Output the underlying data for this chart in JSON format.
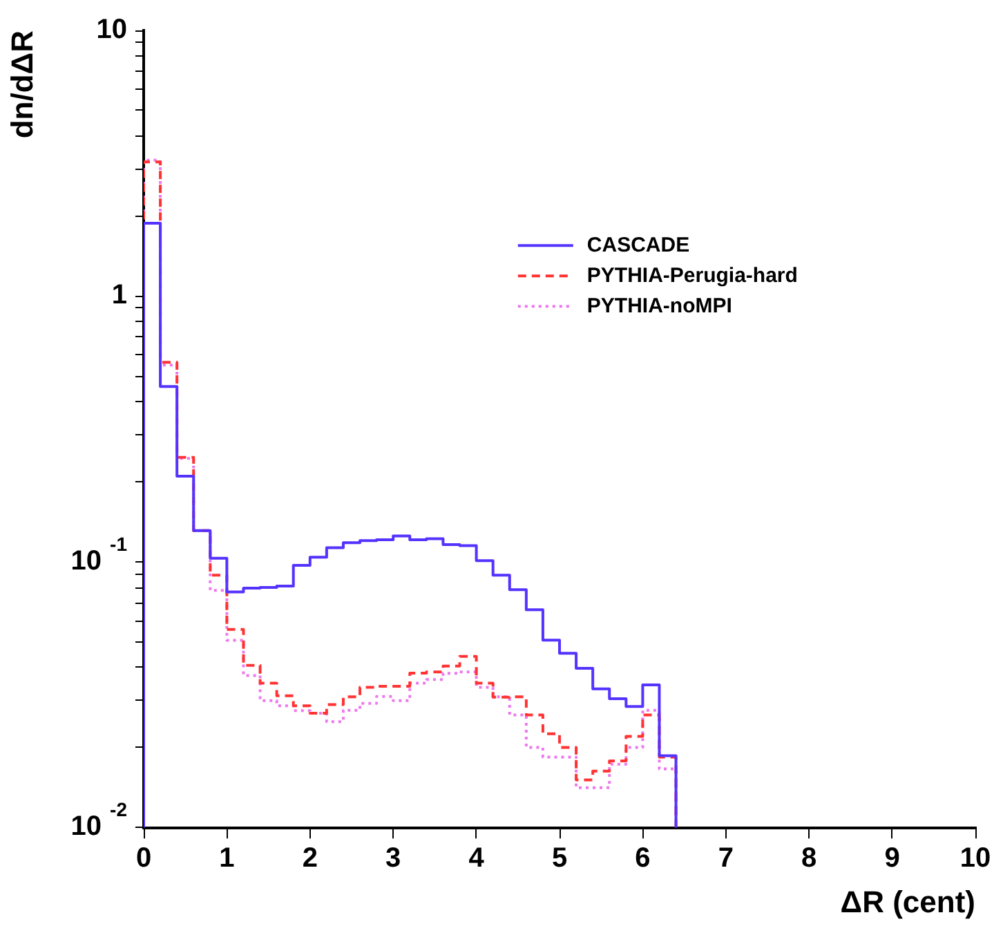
{
  "chart_data": {
    "type": "histogram",
    "xlabel": "ΔR (cent)",
    "ylabel": "dn/dΔR",
    "bins": [
      0,
      0.2,
      0.4,
      0.6,
      0.8,
      1.0,
      1.2,
      1.4,
      1.6,
      1.8,
      2.0,
      2.2,
      2.4,
      2.6,
      2.8,
      3.0,
      3.2,
      3.4,
      3.6,
      3.8,
      4.0,
      4.2,
      4.4,
      4.6,
      4.8,
      5.0,
      5.2,
      5.4,
      5.6,
      5.8,
      6.0,
      6.2,
      6.4
    ],
    "series": [
      {
        "name": "CASCADE",
        "color": "#5533ff",
        "line_style": "solid",
        "values": [
          1.88,
          0.457,
          0.21,
          0.131,
          0.103,
          0.077,
          0.0795,
          0.08,
          0.081,
          0.097,
          0.104,
          0.113,
          0.118,
          0.12,
          0.121,
          0.125,
          0.121,
          0.122,
          0.116,
          0.115,
          0.101,
          0.089,
          0.0785,
          0.066,
          0.0507,
          0.0452,
          0.0397,
          0.0332,
          0.0305,
          0.0285,
          0.0344,
          0.0186
        ]
      },
      {
        "name": "PYTHIA-Perugia-hard",
        "color": "#ff3333",
        "line_style": "dashed",
        "values": [
          3.2,
          0.563,
          0.247,
          0.131,
          0.089,
          0.0556,
          0.0407,
          0.0349,
          0.0313,
          0.0287,
          0.0269,
          0.029,
          0.031,
          0.0337,
          0.034,
          0.034,
          0.0381,
          0.0385,
          0.0405,
          0.044,
          0.0349,
          0.0309,
          0.031,
          0.0265,
          0.0225,
          0.02,
          0.0151,
          0.0163,
          0.0178,
          0.022,
          0.0265,
          0.0184
        ]
      },
      {
        "name": "PYTHIA-noMPI",
        "color": "#ee77ee",
        "line_style": "dotted",
        "values": [
          3.25,
          0.55,
          0.245,
          0.131,
          0.078,
          0.0506,
          0.0373,
          0.03,
          0.0287,
          0.0275,
          0.0269,
          0.025,
          0.0276,
          0.0293,
          0.0311,
          0.03,
          0.0349,
          0.036,
          0.038,
          0.0385,
          0.0337,
          0.031,
          0.0265,
          0.02,
          0.0184,
          0.0184,
          0.0141,
          0.0141,
          0.0173,
          0.02,
          0.0276,
          0.0166
        ]
      }
    ],
    "xlim": [
      0,
      10
    ],
    "xticks": [
      0,
      1,
      2,
      3,
      4,
      5,
      6,
      7,
      8,
      9,
      10
    ],
    "ylim": [
      0.01,
      10
    ],
    "log": "y",
    "yticks": [
      {
        "value": 0.01,
        "label": "10$^{-2}$"
      },
      {
        "value": 0.02,
        "label": null
      },
      {
        "value": 0.03,
        "label": null
      },
      {
        "value": 0.04,
        "label": null
      },
      {
        "value": 0.05,
        "label": null
      },
      {
        "value": 0.06,
        "label": null
      },
      {
        "value": 0.07,
        "label": null
      },
      {
        "value": 0.08,
        "label": null
      },
      {
        "value": 0.09,
        "label": null
      },
      {
        "value": 0.1,
        "label": "10$^{-1}$"
      },
      {
        "value": 0.2,
        "label": null
      },
      {
        "value": 0.3,
        "label": null
      },
      {
        "value": 0.4,
        "label": null
      },
      {
        "value": 0.5,
        "label": null
      },
      {
        "value": 0.6,
        "label": null
      },
      {
        "value": 0.7,
        "label": null
      },
      {
        "value": 0.8,
        "label": null
      },
      {
        "value": 0.9,
        "label": null
      },
      1,
      {
        "value": 2,
        "label": null
      },
      {
        "value": 3,
        "label": null
      },
      {
        "value": 4,
        "label": null
      },
      {
        "value": 5,
        "label": null
      },
      {
        "value": 6,
        "label": null
      },
      {
        "value": 7,
        "label": null
      },
      {
        "value": 8,
        "label": null
      },
      {
        "value": 9,
        "label": null
      },
      10
    ],
    "grid": false,
    "legend": "right"
  }
}
